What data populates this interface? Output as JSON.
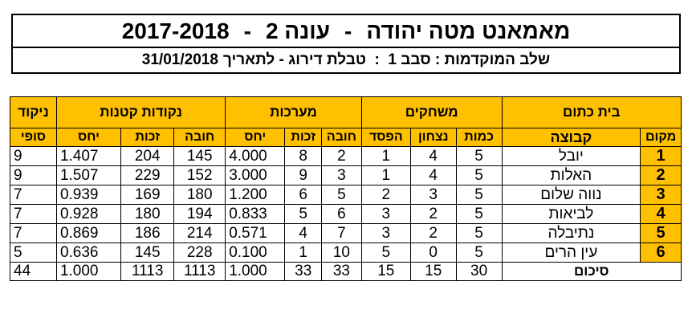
{
  "header": {
    "title_name": "מאמאנט מטה יהודה",
    "title_sep1": "-",
    "title_season": "עונה 2",
    "title_sep2": "-",
    "title_years": "2017-2018",
    "subtitle": "שלב המוקדמות : סבב 1  :  טבלת דירוג - לתאריך",
    "subtitle_date": "31/01/2018"
  },
  "table": {
    "house": "בית כתום",
    "groups": {
      "matches": "משחקים",
      "sets": "מערכות",
      "points": "נקודות קטנות",
      "score": "ניקוד"
    },
    "columns": {
      "place": "מקום",
      "team": "קבוצה",
      "count": "כמות",
      "wins": "נצחון",
      "losses": "הפסד",
      "sets_lost": "חובה",
      "sets_won": "זכות",
      "sets_ratio": "יחס",
      "pts_lost": "חובה",
      "pts_won": "זכות",
      "pts_ratio": "יחס",
      "final": "סופי"
    },
    "rows": [
      {
        "place": "1",
        "team": "יובל",
        "count": "5",
        "wins": "4",
        "losses": "1",
        "sets_lost": "2",
        "sets_won": "8",
        "sets_ratio": "4.000",
        "pts_lost": "145",
        "pts_won": "204",
        "pts_ratio": "1.407",
        "final": "9"
      },
      {
        "place": "2",
        "team": "האלות",
        "count": "5",
        "wins": "4",
        "losses": "1",
        "sets_lost": "3",
        "sets_won": "9",
        "sets_ratio": "3.000",
        "pts_lost": "152",
        "pts_won": "229",
        "pts_ratio": "1.507",
        "final": "9"
      },
      {
        "place": "3",
        "team": "נווה שלום",
        "count": "5",
        "wins": "3",
        "losses": "2",
        "sets_lost": "5",
        "sets_won": "6",
        "sets_ratio": "1.200",
        "pts_lost": "180",
        "pts_won": "169",
        "pts_ratio": "0.939",
        "final": "7"
      },
      {
        "place": "4",
        "team": "לביאות",
        "count": "5",
        "wins": "2",
        "losses": "3",
        "sets_lost": "6",
        "sets_won": "5",
        "sets_ratio": "0.833",
        "pts_lost": "194",
        "pts_won": "180",
        "pts_ratio": "0.928",
        "final": "7"
      },
      {
        "place": "5",
        "team": "נתיבלה",
        "count": "5",
        "wins": "2",
        "losses": "3",
        "sets_lost": "7",
        "sets_won": "4",
        "sets_ratio": "0.571",
        "pts_lost": "214",
        "pts_won": "186",
        "pts_ratio": "0.869",
        "final": "7"
      },
      {
        "place": "6",
        "team": "עין הרים",
        "count": "5",
        "wins": "0",
        "losses": "5",
        "sets_lost": "10",
        "sets_won": "1",
        "sets_ratio": "0.100",
        "pts_lost": "228",
        "pts_won": "145",
        "pts_ratio": "0.636",
        "final": "5"
      }
    ],
    "summary": {
      "label": "סיכום",
      "count": "30",
      "wins": "15",
      "losses": "15",
      "sets_lost": "33",
      "sets_won": "33",
      "sets_ratio": "1.000",
      "pts_lost": "1113",
      "pts_won": "1113",
      "pts_ratio": "1.000",
      "final": "44"
    }
  }
}
